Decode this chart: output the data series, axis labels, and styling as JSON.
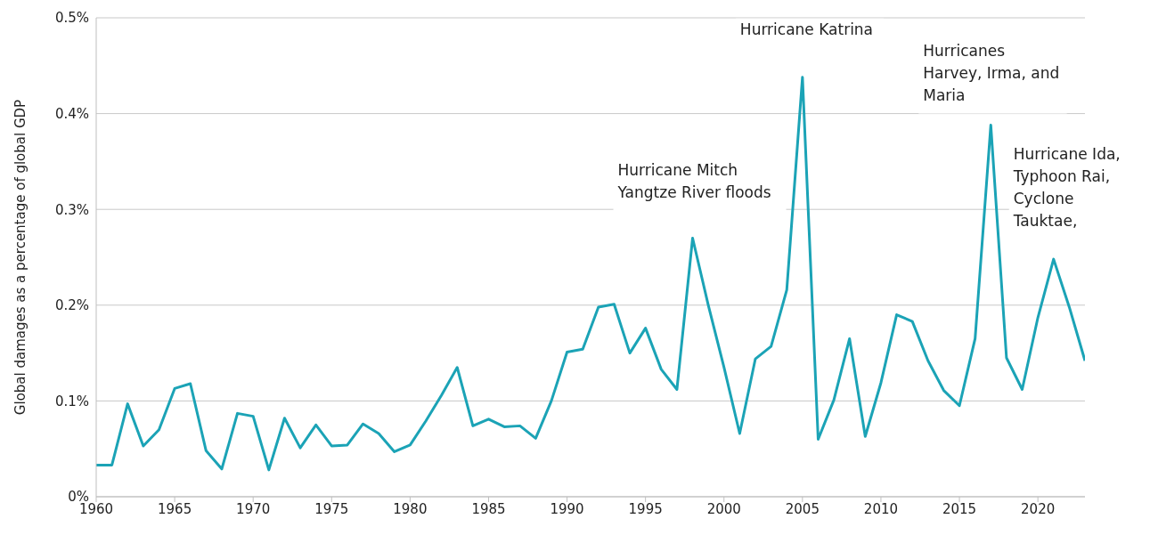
{
  "chart_data": {
    "type": "line",
    "ylabel": "Global damages as a percentage of global GDP",
    "x": [
      1960,
      1961,
      1962,
      1963,
      1964,
      1965,
      1966,
      1967,
      1968,
      1969,
      1970,
      1971,
      1972,
      1973,
      1974,
      1975,
      1976,
      1977,
      1978,
      1979,
      1980,
      1981,
      1982,
      1983,
      1984,
      1985,
      1986,
      1987,
      1988,
      1989,
      1990,
      1991,
      1992,
      1993,
      1994,
      1995,
      1996,
      1997,
      1998,
      1999,
      2000,
      2001,
      2002,
      2003,
      2004,
      2005,
      2006,
      2007,
      2008,
      2009,
      2010,
      2011,
      2012,
      2013,
      2014,
      2015,
      2016,
      2017,
      2018,
      2019,
      2020,
      2021,
      2022,
      2023
    ],
    "series": [
      {
        "color": "#1ba3b6",
        "values": [
          0.033,
          0.033,
          0.097,
          0.053,
          0.07,
          0.113,
          0.118,
          0.048,
          0.029,
          0.087,
          0.084,
          0.028,
          0.082,
          0.051,
          0.075,
          0.053,
          0.054,
          0.076,
          0.066,
          0.047,
          0.054,
          0.079,
          0.106,
          0.135,
          0.074,
          0.081,
          0.073,
          0.074,
          0.061,
          0.1,
          0.151,
          0.154,
          0.198,
          0.201,
          0.15,
          0.176,
          0.133,
          0.112,
          0.27,
          0.2,
          0.135,
          0.066,
          0.144,
          0.157,
          0.216,
          0.438,
          0.06,
          0.101,
          0.165,
          0.063,
          0.119,
          0.19,
          0.183,
          0.142,
          0.111,
          0.095,
          0.165,
          0.388,
          0.145,
          0.112,
          0.187,
          0.248,
          0.198,
          0.142
        ]
      }
    ],
    "xlim": [
      1960,
      2023
    ],
    "xticks": [
      1960,
      1965,
      1970,
      1975,
      1980,
      1985,
      1990,
      1995,
      2000,
      2005,
      2010,
      2015,
      2020
    ],
    "ylim": [
      0,
      0.5
    ],
    "yticks": [
      {
        "value": 0,
        "label": "0%"
      },
      {
        "value": 0.1,
        "label": "0.1%"
      },
      {
        "value": 0.2,
        "label": "0.2%"
      },
      {
        "value": 0.3,
        "label": "0.3%"
      },
      {
        "value": 0.4,
        "label": "0.4%"
      },
      {
        "value": 0.5,
        "label": "0.5%"
      }
    ],
    "grid": "y",
    "marker": "none",
    "line_style": "solid",
    "legend": false,
    "annotations": [
      {
        "text": "Hurricane Mitch Yangtze River floods",
        "x": 1998,
        "y": 0.27
      },
      {
        "text": "Hurricane Katrina",
        "x": 2005,
        "y": 0.438
      },
      {
        "text": "Hurricanes Harvey, Irma, and Maria",
        "x": 2017,
        "y": 0.388
      },
      {
        "text": "Hurricane Ida, Typhoon Rai, Cyclone Tauktae,",
        "x": 2021,
        "y": 0.248
      }
    ]
  }
}
